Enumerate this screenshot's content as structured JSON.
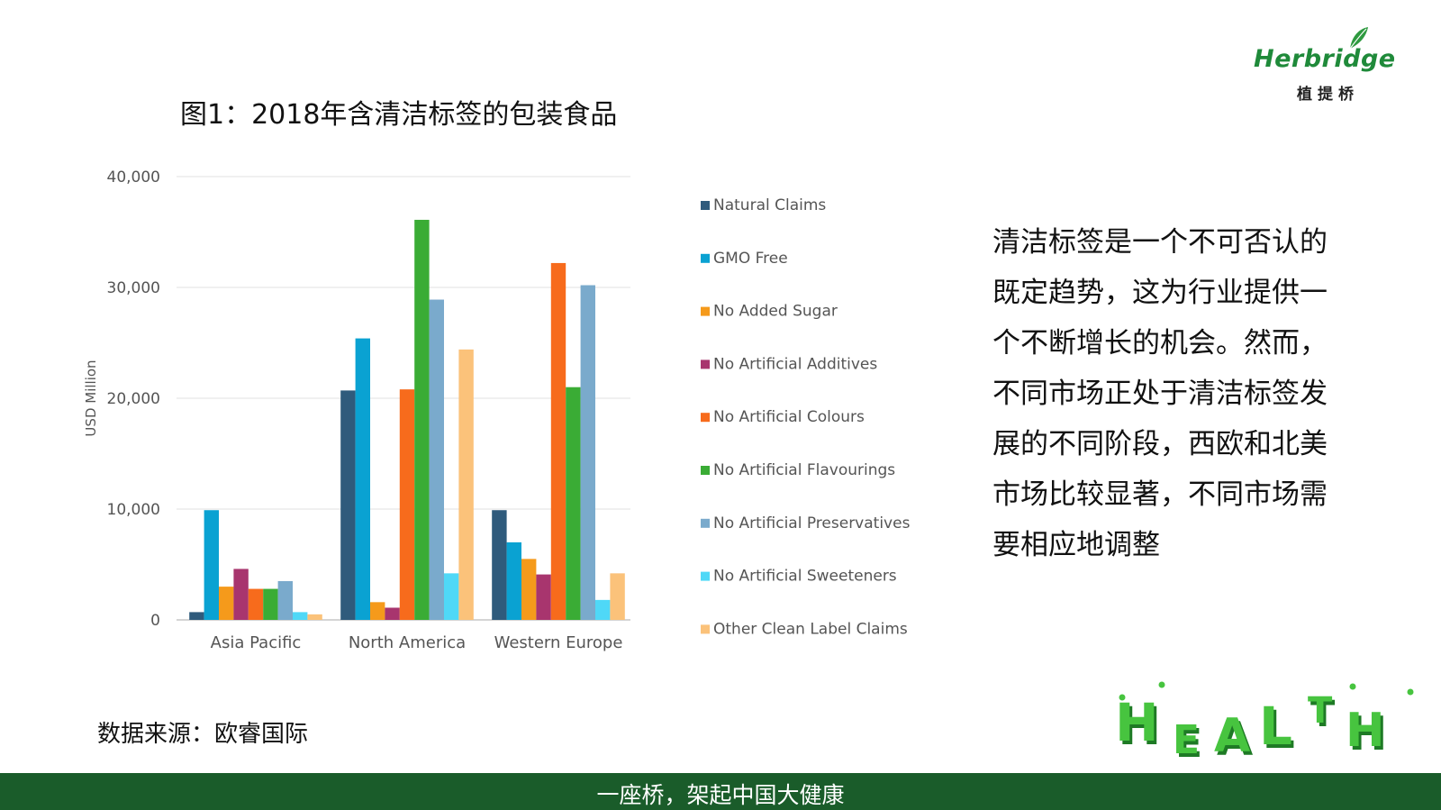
{
  "brand": {
    "logo_word": "Herbridge",
    "logo_cn": "植提桥",
    "green": "#1f8a3a"
  },
  "figure_title": "图1：2018年含清洁标签的包装食品",
  "source_note": "数据来源：欧睿国际",
  "side_text_lines": [
    "清洁标签是一个不可否认的",
    "既定趋势，这为行业提供一",
    "个不断增长的机会。然而，",
    "不同市场正处于清洁标签发",
    "展的不同阶段，西欧和北美",
    "市场比较显著，不同市场需",
    "要相应地调整"
  ],
  "health_word": "HEALTH",
  "footer_slogan": "一座桥，架起中国大健康",
  "footer_color": "#1a5c2a",
  "chart_data": {
    "type": "bar",
    "title": "",
    "xlabel": "",
    "ylabel": "USD Million",
    "ylim": [
      0,
      40000
    ],
    "yticks": [
      0,
      10000,
      20000,
      30000,
      40000
    ],
    "ytick_labels": [
      "0",
      "10,000",
      "20,000",
      "30,000",
      "40,000"
    ],
    "grid": true,
    "legend_position": "right",
    "categories": [
      "Asia Pacific",
      "North America",
      "Western Europe"
    ],
    "series": [
      {
        "name": "Natural Claims",
        "color": "#2f5b7c",
        "values": [
          700,
          20700,
          9900
        ]
      },
      {
        "name": "GMO Free",
        "color": "#0aa2d2",
        "values": [
          9900,
          25400,
          7000
        ]
      },
      {
        "name": "No Added Sugar",
        "color": "#f59a1b",
        "values": [
          3000,
          1600,
          5500
        ]
      },
      {
        "name": "No Artificial Additives",
        "color": "#a8356e",
        "values": [
          4600,
          1100,
          4100
        ]
      },
      {
        "name": "No Artificial Colours",
        "color": "#f76b1c",
        "values": [
          2800,
          20800,
          32200
        ]
      },
      {
        "name": "No Artificial Flavourings",
        "color": "#3aac35",
        "values": [
          2800,
          36100,
          21000
        ]
      },
      {
        "name": "No Artificial Preservatives",
        "color": "#7aaacc",
        "values": [
          3500,
          28900,
          30200
        ]
      },
      {
        "name": "No Artificial Sweeteners",
        "color": "#4fd8f7",
        "values": [
          700,
          4200,
          1800
        ]
      },
      {
        "name": "Other Clean Label Claims",
        "color": "#fbc27a",
        "values": [
          500,
          24400,
          4200
        ]
      }
    ]
  }
}
